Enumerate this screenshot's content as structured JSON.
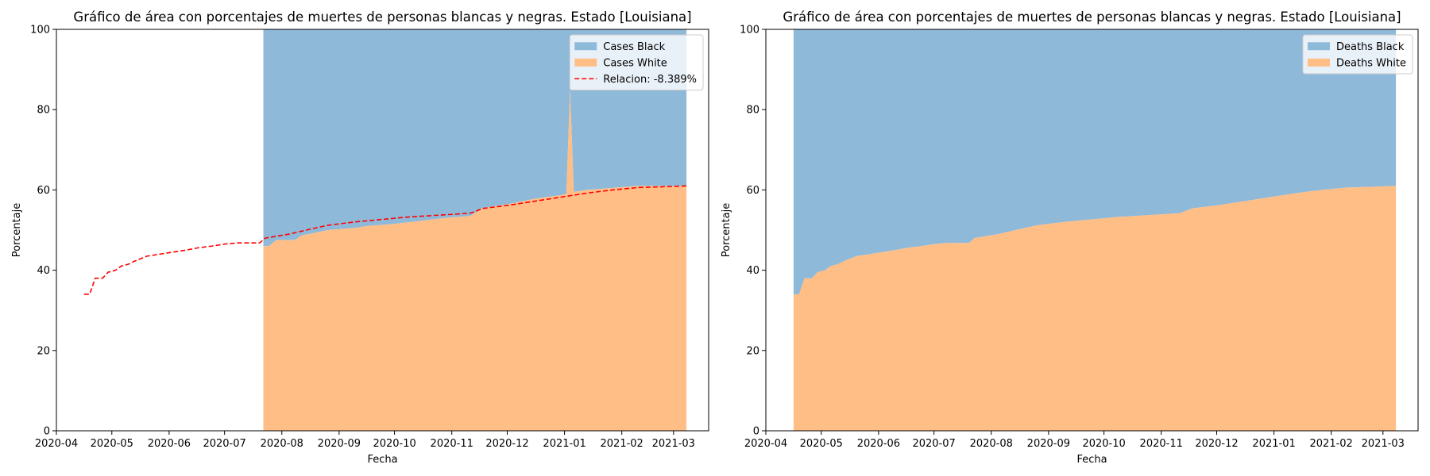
{
  "chart_data": [
    {
      "type": "area",
      "title": "Gráfico de área con porcentajes de muertes de personas blancas y negras. Estado [Louisiana]",
      "xlabel": "Fecha",
      "ylabel": "Porcentaje",
      "xlim": [
        "2020-04-01",
        "2021-03-20"
      ],
      "ylim": [
        0,
        100
      ],
      "yticks": [
        0,
        20,
        40,
        60,
        80,
        100
      ],
      "xticks": [
        "2020-04",
        "2020-05",
        "2020-06",
        "2020-07",
        "2020-08",
        "2020-09",
        "2020-10",
        "2020-11",
        "2020-12",
        "2021-01",
        "2021-02",
        "2021-03"
      ],
      "grid": false,
      "legend_position": "top-right",
      "series": [
        {
          "name": "Cases Black",
          "kind": "stacked-area-top",
          "color": "#8fb9d9",
          "points": [
            [
              "2020-07-22",
              100
            ],
            [
              "2021-03-08",
              100
            ]
          ]
        },
        {
          "name": "Cases White",
          "kind": "stacked-area-bottom",
          "color": "#ffbe86",
          "points": [
            [
              "2020-07-22",
              46.0
            ],
            [
              "2020-07-25",
              46.0
            ],
            [
              "2020-07-29",
              47.5
            ],
            [
              "2020-08-08",
              47.5
            ],
            [
              "2020-08-12",
              48.7
            ],
            [
              "2020-08-19",
              49.3
            ],
            [
              "2020-08-26",
              50.0
            ],
            [
              "2020-09-09",
              50.5
            ],
            [
              "2020-09-16",
              51.0
            ],
            [
              "2020-09-30",
              51.5
            ],
            [
              "2020-10-14",
              52.2
            ],
            [
              "2020-10-28",
              53.0
            ],
            [
              "2020-11-11",
              53.5
            ],
            [
              "2020-11-18",
              55.5
            ],
            [
              "2020-12-02",
              56.5
            ],
            [
              "2020-12-16",
              57.8
            ],
            [
              "2020-12-30",
              58.7
            ],
            [
              "2021-01-02",
              59.0
            ],
            [
              "2021-01-04",
              85.0
            ],
            [
              "2021-01-06",
              59.5
            ],
            [
              "2021-01-13",
              60.0
            ],
            [
              "2021-01-27",
              60.5
            ],
            [
              "2021-02-10",
              61.0
            ],
            [
              "2021-03-08",
              61.0
            ]
          ]
        },
        {
          "name": "Relacion: -8.389%",
          "kind": "dashed-line",
          "color": "#ff0000",
          "points": [
            [
              "2020-04-16",
              34.0
            ],
            [
              "2020-04-19",
              34.0
            ],
            [
              "2020-04-22",
              38.0
            ],
            [
              "2020-04-26",
              38.0
            ],
            [
              "2020-04-29",
              39.5
            ],
            [
              "2020-05-03",
              40.0
            ],
            [
              "2020-05-06",
              41.0
            ],
            [
              "2020-05-10",
              41.5
            ],
            [
              "2020-05-13",
              42.2
            ],
            [
              "2020-05-20",
              43.5
            ],
            [
              "2020-05-27",
              44.0
            ],
            [
              "2020-06-03",
              44.5
            ],
            [
              "2020-06-10",
              45.0
            ],
            [
              "2020-06-17",
              45.6
            ],
            [
              "2020-06-24",
              46.0
            ],
            [
              "2020-07-01",
              46.5
            ],
            [
              "2020-07-08",
              46.8
            ],
            [
              "2020-07-20",
              46.8
            ],
            [
              "2020-07-23",
              48.0
            ],
            [
              "2020-08-05",
              49.0
            ],
            [
              "2020-08-19",
              50.5
            ],
            [
              "2020-08-26",
              51.2
            ],
            [
              "2020-09-09",
              52.0
            ],
            [
              "2020-09-23",
              52.6
            ],
            [
              "2020-10-07",
              53.2
            ],
            [
              "2020-10-21",
              53.6
            ],
            [
              "2020-11-04",
              54.0
            ],
            [
              "2020-11-11",
              54.2
            ],
            [
              "2020-11-18",
              55.4
            ],
            [
              "2020-12-02",
              56.2
            ],
            [
              "2020-12-16",
              57.2
            ],
            [
              "2020-12-30",
              58.2
            ],
            [
              "2021-01-13",
              59.2
            ],
            [
              "2021-01-27",
              60.0
            ],
            [
              "2021-02-10",
              60.6
            ],
            [
              "2021-02-24",
              60.8
            ],
            [
              "2021-03-08",
              61.0
            ]
          ]
        }
      ]
    },
    {
      "type": "area",
      "title": "Gráfico de área con porcentajes de muertes de personas blancas y negras. Estado [Louisiana]",
      "xlabel": "Fecha",
      "ylabel": "Porcentaje",
      "xlim": [
        "2020-04-01",
        "2021-03-20"
      ],
      "ylim": [
        0,
        100
      ],
      "yticks": [
        0,
        20,
        40,
        60,
        80,
        100
      ],
      "xticks": [
        "2020-04",
        "2020-05",
        "2020-06",
        "2020-07",
        "2020-08",
        "2020-09",
        "2020-10",
        "2020-11",
        "2020-12",
        "2021-01",
        "2021-02",
        "2021-03"
      ],
      "grid": false,
      "legend_position": "top-right",
      "series": [
        {
          "name": "Deaths Black",
          "kind": "stacked-area-top",
          "color": "#8fb9d9",
          "points": [
            [
              "2020-04-16",
              100
            ],
            [
              "2021-03-08",
              100
            ]
          ]
        },
        {
          "name": "Deaths White",
          "kind": "stacked-area-bottom",
          "color": "#ffbe86",
          "points": [
            [
              "2020-04-16",
              34.0
            ],
            [
              "2020-04-19",
              34.0
            ],
            [
              "2020-04-22",
              38.0
            ],
            [
              "2020-04-26",
              38.0
            ],
            [
              "2020-04-29",
              39.5
            ],
            [
              "2020-05-03",
              40.0
            ],
            [
              "2020-05-06",
              41.0
            ],
            [
              "2020-05-10",
              41.5
            ],
            [
              "2020-05-13",
              42.2
            ],
            [
              "2020-05-20",
              43.5
            ],
            [
              "2020-05-27",
              44.0
            ],
            [
              "2020-06-03",
              44.5
            ],
            [
              "2020-06-10",
              45.0
            ],
            [
              "2020-06-17",
              45.6
            ],
            [
              "2020-06-24",
              46.0
            ],
            [
              "2020-07-01",
              46.5
            ],
            [
              "2020-07-08",
              46.8
            ],
            [
              "2020-07-20",
              46.8
            ],
            [
              "2020-07-23",
              48.0
            ],
            [
              "2020-08-05",
              49.0
            ],
            [
              "2020-08-19",
              50.5
            ],
            [
              "2020-08-26",
              51.2
            ],
            [
              "2020-09-09",
              52.0
            ],
            [
              "2020-09-23",
              52.6
            ],
            [
              "2020-10-07",
              53.2
            ],
            [
              "2020-10-21",
              53.6
            ],
            [
              "2020-11-04",
              54.0
            ],
            [
              "2020-11-11",
              54.2
            ],
            [
              "2020-11-18",
              55.4
            ],
            [
              "2020-12-02",
              56.2
            ],
            [
              "2020-12-16",
              57.2
            ],
            [
              "2020-12-30",
              58.2
            ],
            [
              "2021-01-13",
              59.2
            ],
            [
              "2021-01-27",
              60.0
            ],
            [
              "2021-02-10",
              60.6
            ],
            [
              "2021-02-24",
              60.8
            ],
            [
              "2021-03-08",
              61.0
            ]
          ]
        }
      ]
    }
  ]
}
